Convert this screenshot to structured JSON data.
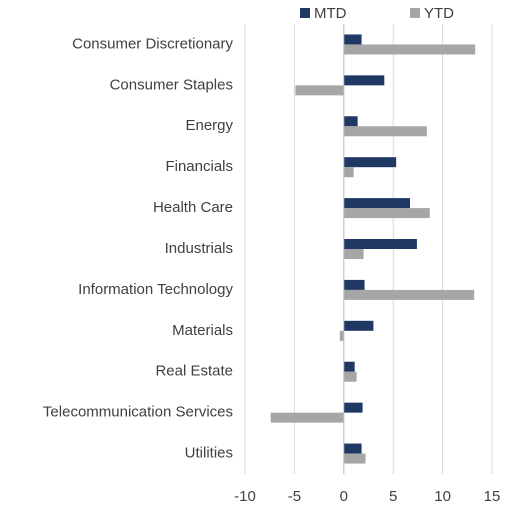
{
  "chart_data": {
    "type": "hbar",
    "categories": [
      "Consumer Discretionary",
      "Consumer Staples",
      "Energy",
      "Financials",
      "Health Care",
      "Industrials",
      "Information Technology",
      "Materials",
      "Real Estate",
      "Telecommunication Services",
      "Utilities"
    ],
    "series": [
      {
        "name": "MTD",
        "color": "#1f3864",
        "values": [
          1.8,
          4.1,
          1.4,
          5.3,
          6.7,
          7.4,
          2.1,
          3.0,
          1.1,
          1.9,
          1.8
        ]
      },
      {
        "name": "YTD",
        "color": "#a6a6a6",
        "values": [
          13.3,
          -4.9,
          8.4,
          1.0,
          8.7,
          2.0,
          13.2,
          -0.4,
          1.3,
          -7.4,
          2.2
        ]
      }
    ],
    "xlim": [
      -10,
      15
    ],
    "xticks": [
      -10,
      -5,
      0,
      5,
      10,
      15
    ],
    "grid": true,
    "legend": "top"
  }
}
